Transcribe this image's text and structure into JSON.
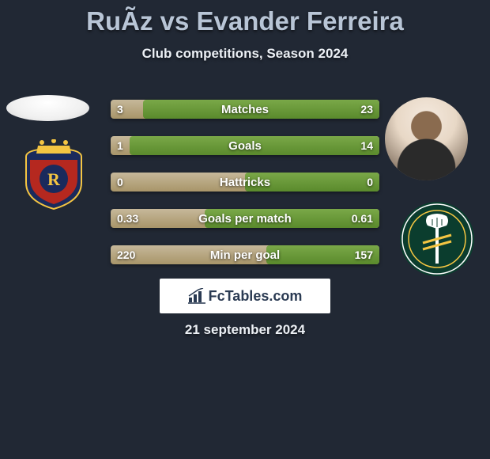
{
  "page": {
    "title": "RuÃ­z vs Evander Ferreira",
    "subtitle": "Club competitions, Season 2024",
    "date": "21 september 2024",
    "background": "#212834",
    "logo_text": "FcTables.com"
  },
  "bars": {
    "colors": {
      "track_top": "#c6b89a",
      "track_bottom": "#a89569",
      "fill_top": "#7aa848",
      "fill_bottom": "#5a8a2c"
    },
    "rows": [
      {
        "label": "Matches",
        "left": "3",
        "right": "23",
        "fill_pct": 88
      },
      {
        "label": "Goals",
        "left": "1",
        "right": "14",
        "fill_pct": 93
      },
      {
        "label": "Hattricks",
        "left": "0",
        "right": "0",
        "fill_pct": 50
      },
      {
        "label": "Goals per match",
        "left": "0.33",
        "right": "0.61",
        "fill_pct": 65
      },
      {
        "label": "Min per goal",
        "left": "220",
        "right": "157",
        "fill_pct": 42
      }
    ]
  },
  "crests": {
    "left": {
      "primary": "#1a2a5c",
      "secondary": "#b5281f",
      "accent": "#f4c542"
    },
    "right": {
      "primary": "#0b3d2e",
      "secondary": "#f4c542",
      "ring": "#ffffff"
    }
  }
}
